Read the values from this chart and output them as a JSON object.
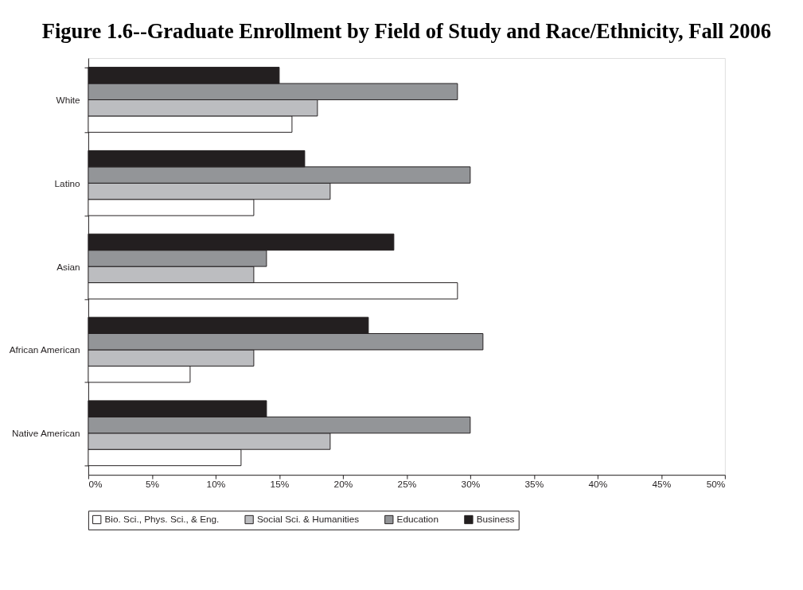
{
  "chart_data": {
    "type": "bar",
    "orientation": "horizontal",
    "title": "Figure 1.6--Graduate Enrollment by Field of Study and Race/Ethnicity, Fall 2006",
    "categories": [
      "White",
      "Latino",
      "Asian",
      "African American",
      "Native American"
    ],
    "series": [
      {
        "name": "Bio. Sci., Phys. Sci., & Eng.",
        "color": "#ffffff",
        "values": [
          16,
          13,
          29,
          8,
          12
        ]
      },
      {
        "name": "Social Sci. & Humanities",
        "color": "#bcbdc0",
        "values": [
          18,
          19,
          13,
          13,
          19
        ]
      },
      {
        "name": "Education",
        "color": "#939598",
        "values": [
          29,
          30,
          14,
          31,
          30
        ]
      },
      {
        "name": "Business",
        "color": "#231f20",
        "values": [
          15,
          17,
          24,
          22,
          14
        ]
      }
    ],
    "xlim": [
      0,
      50
    ],
    "xticks": [
      {
        "value": 0,
        "label": "0%"
      },
      {
        "value": 5,
        "label": "5%"
      },
      {
        "value": 10,
        "label": "10%"
      },
      {
        "value": 15,
        "label": "15%"
      },
      {
        "value": 20,
        "label": "20%"
      },
      {
        "value": 25,
        "label": "25%"
      },
      {
        "value": 30,
        "label": "30%"
      },
      {
        "value": 35,
        "label": "35%"
      },
      {
        "value": 40,
        "label": "40%"
      },
      {
        "value": 45,
        "label": "45%"
      },
      {
        "value": 50,
        "label": "50%"
      }
    ],
    "grid": false,
    "legend": "bottom"
  }
}
